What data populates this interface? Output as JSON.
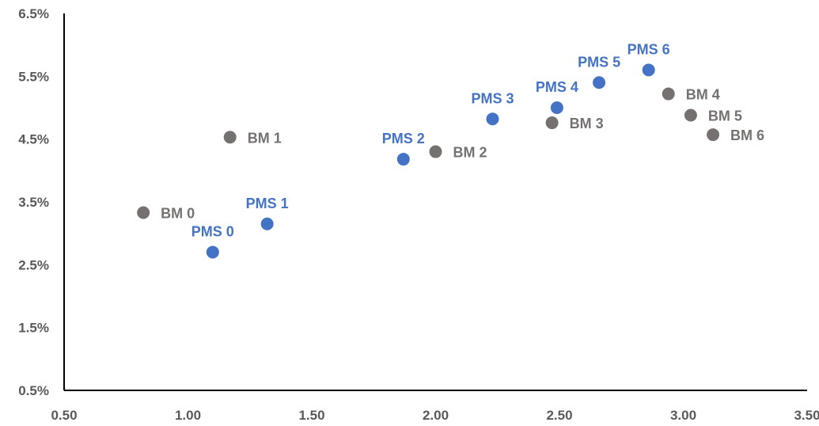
{
  "chart_data": {
    "type": "scatter",
    "title": "",
    "xlabel": "",
    "ylabel": "",
    "xlim": [
      0.5,
      3.5
    ],
    "ylim": [
      0.005,
      0.065
    ],
    "x_ticks": [
      0.5,
      1.0,
      1.5,
      2.0,
      2.5,
      3.0,
      3.5
    ],
    "x_tick_labels": [
      "0.50",
      "1.00",
      "1.50",
      "2.00",
      "2.50",
      "3.00",
      "3.50"
    ],
    "y_ticks": [
      0.005,
      0.015,
      0.025,
      0.035,
      0.045,
      0.055,
      0.065
    ],
    "y_tick_labels": [
      "0.5%",
      "1.5%",
      "2.5%",
      "3.5%",
      "4.5%",
      "5.5%",
      "6.5%"
    ],
    "grid": false,
    "legend": "none",
    "series": [
      {
        "color": "#4472C4",
        "label_position": "above",
        "points": [
          {
            "label": "PMS 0",
            "x": 1.1,
            "y": 0.027
          },
          {
            "label": "PMS 1",
            "x": 1.32,
            "y": 0.0315
          },
          {
            "label": "PMS 2",
            "x": 1.87,
            "y": 0.0418
          },
          {
            "label": "PMS 3",
            "x": 2.23,
            "y": 0.0482
          },
          {
            "label": "PMS 4",
            "x": 2.49,
            "y": 0.05
          },
          {
            "label": "PMS 5",
            "x": 2.66,
            "y": 0.054
          },
          {
            "label": "PMS 6",
            "x": 2.86,
            "y": 0.056
          }
        ]
      },
      {
        "color": "#767171",
        "label_position": "right",
        "points": [
          {
            "label": "BM 0",
            "x": 0.82,
            "y": 0.0333
          },
          {
            "label": "BM 1",
            "x": 1.17,
            "y": 0.0453
          },
          {
            "label": "BM 2",
            "x": 2.0,
            "y": 0.043
          },
          {
            "label": "BM 3",
            "x": 2.47,
            "y": 0.0476
          },
          {
            "label": "BM 4",
            "x": 2.94,
            "y": 0.0522
          },
          {
            "label": "BM 5",
            "x": 3.03,
            "y": 0.0488
          },
          {
            "label": "BM 6",
            "x": 3.12,
            "y": 0.0457
          }
        ]
      }
    ]
  }
}
